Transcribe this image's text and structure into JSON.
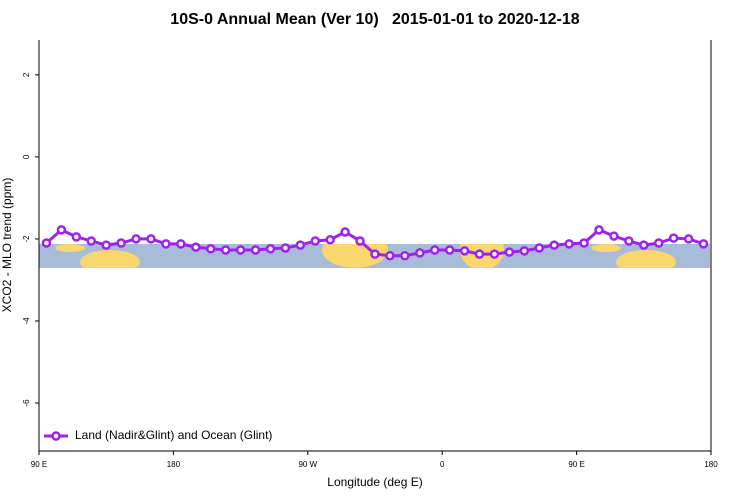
{
  "chart_data": {
    "type": "line",
    "title": "10S-0 Annual Mean (Ver 10)   2015-01-01 to 2020-12-18",
    "x_label": "Longitude (deg E)",
    "y_label": "XCO2 - MLO trend (ppm)",
    "xlim": [
      90,
      540
    ],
    "ylim": [
      -7.17,
      2.85
    ],
    "xticks": [
      {
        "value": 90,
        "label": "90 E"
      },
      {
        "value": 180,
        "label": "180"
      },
      {
        "value": 270,
        "label": "90 W"
      },
      {
        "value": 360,
        "label": "0"
      },
      {
        "value": 450,
        "label": "90 E"
      },
      {
        "value": 540,
        "label": "180"
      }
    ],
    "yticks": [
      2,
      0,
      -2,
      -4,
      -6
    ],
    "legend": "bottom-left",
    "x": [
      95,
      105,
      115,
      125,
      135,
      145,
      155,
      165,
      175,
      185,
      195,
      205,
      215,
      225,
      235,
      245,
      255,
      265,
      275,
      285,
      295,
      305,
      315,
      325,
      335,
      345,
      355,
      365,
      375,
      385,
      395,
      405,
      415,
      425,
      435,
      445,
      455,
      465,
      475,
      485,
      495,
      505,
      515,
      525,
      535
    ],
    "series": [
      {
        "name": "Land (Nadir&Glint) and Ocean (Glint)",
        "color": "#a020f0",
        "values": [
          -2.1,
          -1.78,
          -1.95,
          -2.05,
          -2.15,
          -2.1,
          -2.0,
          -2.0,
          -2.12,
          -2.12,
          -2.2,
          -2.24,
          -2.27,
          -2.27,
          -2.27,
          -2.24,
          -2.22,
          -2.15,
          -2.05,
          -2.02,
          -1.83,
          -2.05,
          -2.37,
          -2.41,
          -2.41,
          -2.34,
          -2.27,
          -2.27,
          -2.29,
          -2.37,
          -2.37,
          -2.32,
          -2.29,
          -2.22,
          -2.15,
          -2.12,
          -2.1,
          -1.78,
          -1.93,
          -2.05,
          -2.15,
          -2.1,
          -1.98,
          -2.0,
          -2.12
        ]
      }
    ]
  }
}
